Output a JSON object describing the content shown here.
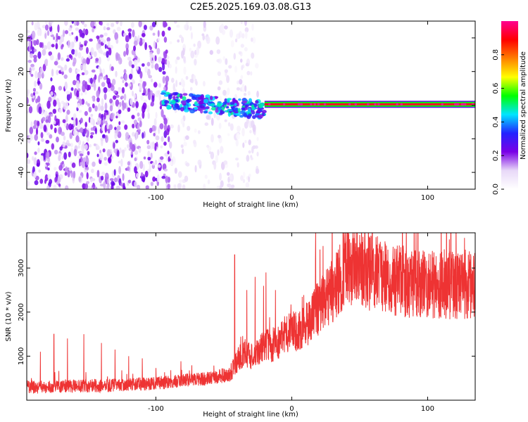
{
  "title": "C2E5.2025.169.03.08.G13",
  "chart_data": [
    {
      "type": "heatmap",
      "xlabel": "Height of straight line (km)",
      "ylabel": "Frequency (Hz)",
      "xlim": [
        -195,
        135
      ],
      "ylim": [
        -50,
        50
      ],
      "x_ticks": [
        -100,
        0,
        100
      ],
      "x_tick_labels": [
        "-100",
        "0",
        "100"
      ],
      "y_ticks": [
        -40,
        -20,
        0,
        20,
        40
      ],
      "y_tick_labels": [
        "-40",
        "-20",
        "0",
        "20",
        "40"
      ],
      "colorbar": {
        "label": "Normalized spectral amplitude",
        "range": [
          0,
          1
        ],
        "ticks": [
          0.0,
          0.2,
          0.4,
          0.6,
          0.8
        ],
        "tick_labels": [
          "0.0",
          "0.2",
          "0.4",
          "0.6",
          "0.8"
        ],
        "colormap": [
          "#ffffff",
          "#e8d8f8",
          "#7a00e6",
          "#2222ff",
          "#00e5ff",
          "#00ff00",
          "#ffff00",
          "#ff8000",
          "#ff0000",
          "#ff0090"
        ]
      },
      "regions": [
        {
          "description": "scattered noise blobs",
          "x_range": [
            -195,
            -90
          ],
          "freq_range": [
            -50,
            50
          ],
          "amplitude": [
            0.05,
            0.25
          ]
        },
        {
          "description": "fading noise",
          "x_range": [
            -90,
            -25
          ],
          "freq_range": [
            -50,
            50
          ],
          "amplitude": [
            0.02,
            0.12
          ]
        },
        {
          "description": "emerging carrier",
          "x_range": [
            -95,
            -20
          ],
          "freq_center": [
            3,
            -3
          ],
          "amplitude": [
            0.2,
            0.5
          ]
        },
        {
          "description": "stable carrier line",
          "x_range": [
            -20,
            135
          ],
          "freq_center": 0.5,
          "amplitude": [
            0.8,
            1.0
          ]
        }
      ]
    },
    {
      "type": "line",
      "xlabel": "Height of straight line (km)",
      "ylabel": "SNR (10 * v/v)",
      "xlim": [
        -195,
        135
      ],
      "ylim": [
        0,
        3800
      ],
      "x_ticks": [
        -100,
        0,
        100
      ],
      "x_tick_labels": [
        "-100",
        "0",
        "100"
      ],
      "y_ticks": [
        1000,
        2000,
        3000
      ],
      "y_tick_labels": [
        "1000",
        "2000",
        "3000"
      ],
      "color": "#ee3333",
      "series": [
        {
          "x": [
            -195,
            -180,
            -160,
            -140,
            -120,
            -100,
            -80,
            -60,
            -45,
            -40,
            -35,
            -30,
            -25,
            -20,
            -15,
            -10,
            -5,
            0,
            5,
            10,
            15,
            20,
            25,
            30,
            35,
            40,
            45,
            50,
            60,
            70,
            80,
            90,
            100,
            110,
            120,
            130,
            135
          ],
          "y": [
            300,
            300,
            320,
            330,
            350,
            380,
            450,
            500,
            600,
            900,
            1100,
            1000,
            1100,
            1300,
            1200,
            1300,
            1500,
            1550,
            1600,
            1700,
            1900,
            2100,
            2300,
            2500,
            2700,
            3000,
            3100,
            3000,
            2850,
            2800,
            2700,
            2650,
            2600,
            2650,
            2600,
            2650,
            2650
          ]
        }
      ],
      "spikes": [
        {
          "x": -185,
          "y": 1100
        },
        {
          "x": -175,
          "y": 1500
        },
        {
          "x": -165,
          "y": 1400
        },
        {
          "x": -153,
          "y": 1500
        },
        {
          "x": -140,
          "y": 1300
        },
        {
          "x": -130,
          "y": 1150
        },
        {
          "x": -120,
          "y": 1000
        },
        {
          "x": -110,
          "y": 950
        },
        {
          "x": -42,
          "y": 3300
        },
        {
          "x": -33,
          "y": 2500
        },
        {
          "x": -27,
          "y": 2800
        },
        {
          "x": -19,
          "y": 2900
        },
        {
          "x": -12,
          "y": 2500
        },
        {
          "x": 62,
          "y": 3700
        },
        {
          "x": 82,
          "y": 3500
        },
        {
          "x": 116,
          "y": 3650
        }
      ]
    }
  ]
}
